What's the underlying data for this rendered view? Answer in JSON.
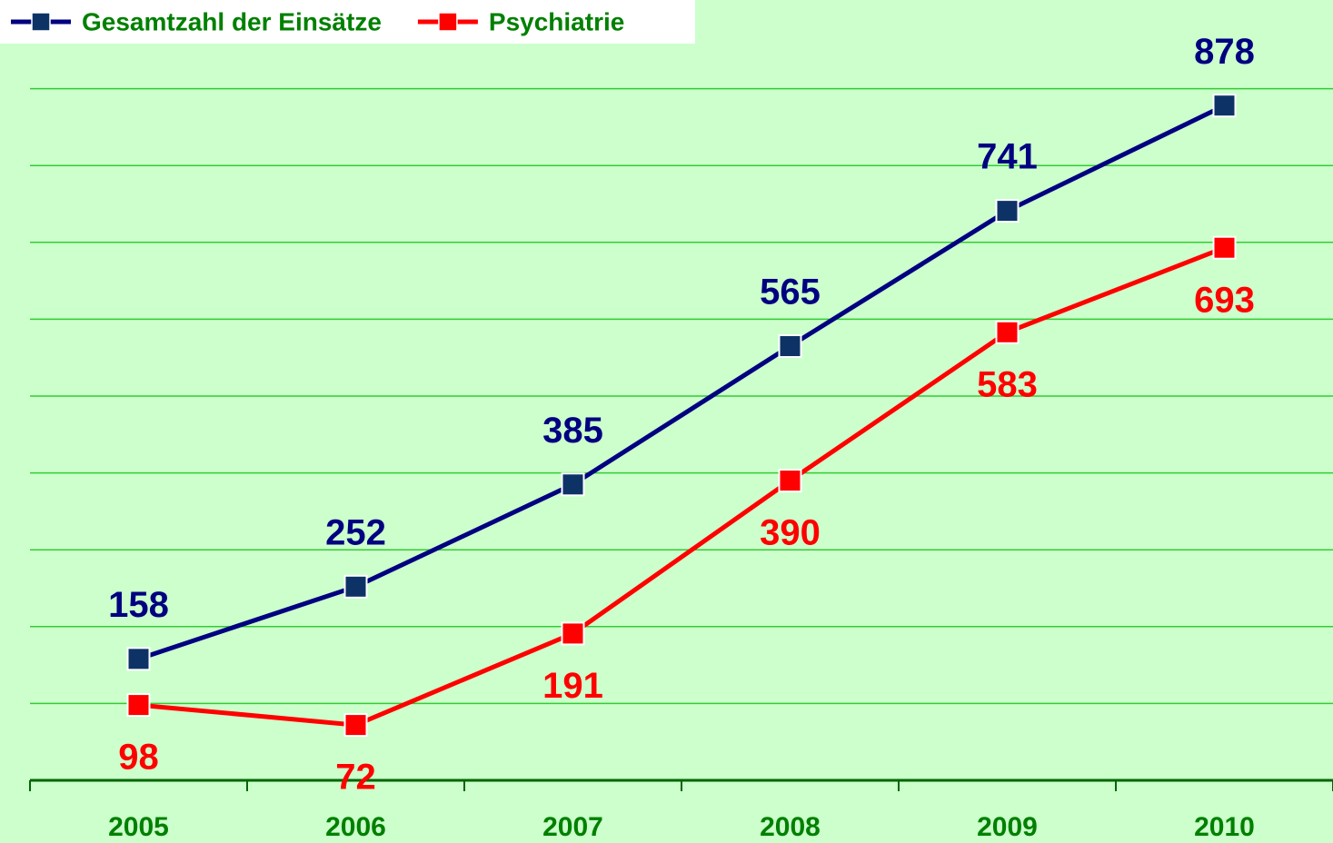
{
  "chart_data": {
    "type": "line",
    "categories": [
      "2005",
      "2006",
      "2007",
      "2008",
      "2009",
      "2010"
    ],
    "series": [
      {
        "name": "Gesamtzahl der Einsätze",
        "color": "#000080",
        "marker_color": "#0d3366",
        "values": [
          158,
          252,
          385,
          565,
          741,
          878
        ]
      },
      {
        "name": "Psychiatrie",
        "color": "#ff0000",
        "marker_color": "#ff0000",
        "values": [
          98,
          72,
          191,
          390,
          583,
          693
        ]
      }
    ],
    "ylim": [
      0,
      1000
    ],
    "yticks": [
      0,
      100,
      200,
      300,
      400,
      500,
      600,
      700,
      800,
      900
    ],
    "grid": true,
    "legend": "top-left"
  }
}
